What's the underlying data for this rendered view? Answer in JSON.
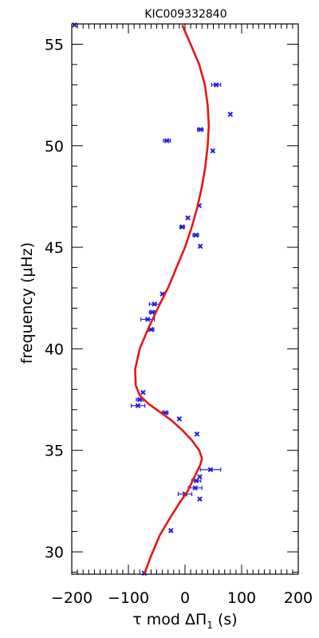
{
  "chart_data": {
    "type": "scatter",
    "title": "KIC009332840",
    "xlabel": "τ mod ΔΠ₁ (s)",
    "xlabel_parts": {
      "pre": "τ mod ΔΠ",
      "sub": "1",
      "post": " (s)"
    },
    "ylabel": "frequency (μHz)",
    "xlim": [
      -200,
      200
    ],
    "ylim": [
      28.9,
      56.0
    ],
    "x_ticks": [
      -200,
      -100,
      0,
      100,
      200
    ],
    "x_tick_labels": [
      "−200",
      "−100",
      "0",
      "100",
      "200"
    ],
    "y_ticks": [
      30,
      35,
      40,
      45,
      50,
      55
    ],
    "y_tick_labels": [
      "30",
      "35",
      "40",
      "45",
      "50",
      "55"
    ],
    "grid": false,
    "series": [
      {
        "kind": "points",
        "color": "#1f1fdd",
        "points": [
          {
            "x": -195,
            "y": 55.95,
            "xerr": 0
          },
          {
            "x": 55,
            "y": 53.0,
            "xerr": 8
          },
          {
            "x": 80,
            "y": 51.55,
            "xerr": 0
          },
          {
            "x": 27,
            "y": 50.8,
            "xerr": 5
          },
          {
            "x": -32,
            "y": 50.25,
            "xerr": 6
          },
          {
            "x": 49,
            "y": 49.75,
            "xerr": 0
          },
          {
            "x": 25,
            "y": 47.05,
            "xerr": 0
          },
          {
            "x": 5,
            "y": 46.45,
            "xerr": 0
          },
          {
            "x": -5,
            "y": 46.0,
            "xerr": 4
          },
          {
            "x": 19,
            "y": 45.6,
            "xerr": 5
          },
          {
            "x": 27,
            "y": 45.05,
            "xerr": 0
          },
          {
            "x": -40,
            "y": 42.7,
            "xerr": 0
          },
          {
            "x": -54,
            "y": 42.2,
            "xerr": 9
          },
          {
            "x": -58,
            "y": 41.8,
            "xerr": 5
          },
          {
            "x": -66,
            "y": 41.45,
            "xerr": 12
          },
          {
            "x": -60,
            "y": 40.95,
            "xerr": 5
          },
          {
            "x": -74,
            "y": 37.85,
            "xerr": 0
          },
          {
            "x": -80,
            "y": 37.5,
            "xerr": 6
          },
          {
            "x": -83,
            "y": 37.2,
            "xerr": 12
          },
          {
            "x": -35,
            "y": 36.85,
            "xerr": 5
          },
          {
            "x": -10,
            "y": 36.55,
            "xerr": 0
          },
          {
            "x": 21,
            "y": 35.8,
            "xerr": 0
          },
          {
            "x": 45,
            "y": 34.05,
            "xerr": 18
          },
          {
            "x": 26,
            "y": 33.7,
            "xerr": 0
          },
          {
            "x": 20,
            "y": 33.5,
            "xerr": 8
          },
          {
            "x": 18,
            "y": 33.15,
            "xerr": 12
          },
          {
            "x": 0,
            "y": 32.85,
            "xerr": 12
          },
          {
            "x": 26,
            "y": 32.6,
            "xerr": 0
          },
          {
            "x": -25,
            "y": 31.05,
            "xerr": 0
          },
          {
            "x": -72,
            "y": 28.95,
            "xerr": 0
          }
        ]
      },
      {
        "kind": "line",
        "color": "#e81414",
        "x": [
          -72,
          -60,
          -45,
          -28,
          -10,
          5,
          15,
          22,
          27,
          30,
          25,
          12,
          -5,
          -25,
          -45,
          -65,
          -80,
          -87,
          -88,
          -80,
          -65,
          -48,
          -30,
          -15,
          0,
          12,
          22,
          30,
          36,
          40,
          42,
          40,
          35,
          25,
          10,
          -5
        ],
        "y": [
          28.9,
          29.8,
          30.8,
          31.6,
          32.4,
          33.0,
          33.6,
          34.0,
          34.3,
          34.6,
          35.0,
          35.5,
          36.0,
          36.5,
          36.9,
          37.3,
          37.7,
          38.2,
          39.0,
          40.0,
          41.0,
          42.0,
          43.0,
          44.0,
          45.0,
          46.0,
          47.0,
          48.0,
          49.0,
          50.0,
          51.0,
          52.0,
          53.0,
          54.0,
          55.0,
          55.95
        ]
      }
    ]
  }
}
